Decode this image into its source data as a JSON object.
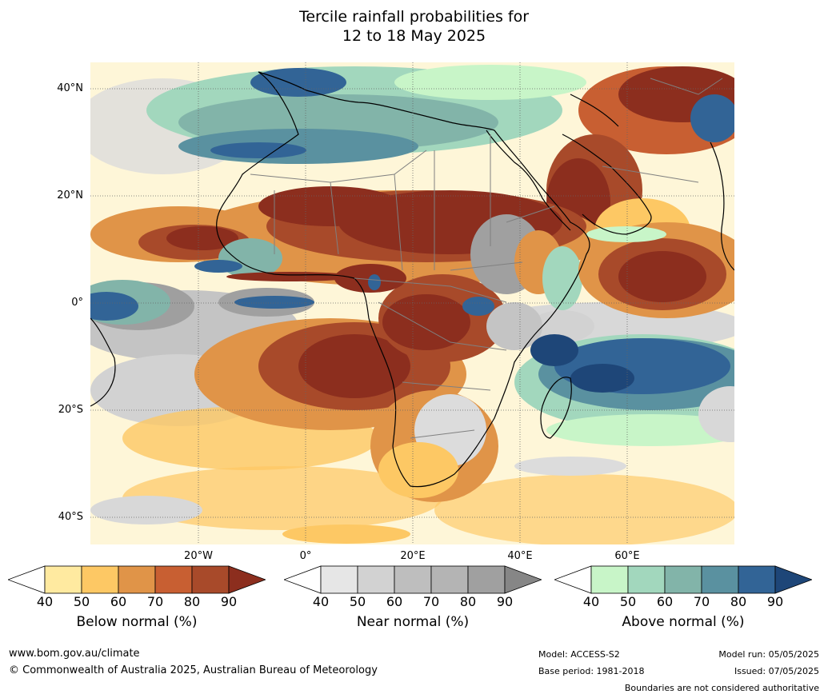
{
  "title_line1": "Tercile rainfall probabilities for",
  "title_line2": "12 to 18 May 2025",
  "lat_labels": [
    "40°N",
    "20°N",
    "0°",
    "20°S",
    "40°S"
  ],
  "lon_labels": [
    "20°W",
    "0°",
    "20°E",
    "40°E",
    "60°E"
  ],
  "colorbars": [
    {
      "title": "Below normal (%)",
      "ticks": [
        "40",
        "50",
        "60",
        "70",
        "80",
        "90"
      ],
      "colors": [
        "#ffffff",
        "#ffeaa0",
        "#fdc864",
        "#e09448",
        "#c85f32",
        "#a84a2a",
        "#8c2e1e"
      ]
    },
    {
      "title": "Near normal (%)",
      "ticks": [
        "40",
        "50",
        "60",
        "70",
        "80",
        "90"
      ],
      "colors": [
        "#ffffff",
        "#e6e6e6",
        "#d2d2d2",
        "#bebebe",
        "#b4b4b4",
        "#a0a0a0",
        "#868686"
      ]
    },
    {
      "title": "Above normal (%)",
      "ticks": [
        "40",
        "50",
        "60",
        "70",
        "80",
        "90"
      ],
      "colors": [
        "#ffffff",
        "#c8f5c8",
        "#a2d7bd",
        "#82b4a9",
        "#5a91a0",
        "#326496",
        "#1e4678"
      ]
    }
  ],
  "footer": {
    "website": "www.bom.gov.au/climate",
    "copyright": "© Commonwealth of Australia 2025, Australian Bureau of Meteorology",
    "model": "Model: ACCESS-S2",
    "base_period": "Base period: 1981-2018",
    "model_run": "Model run: 05/05/2025",
    "issued": "Issued: 07/05/2025",
    "boundaries": "Boundaries are not considered authoritative"
  }
}
